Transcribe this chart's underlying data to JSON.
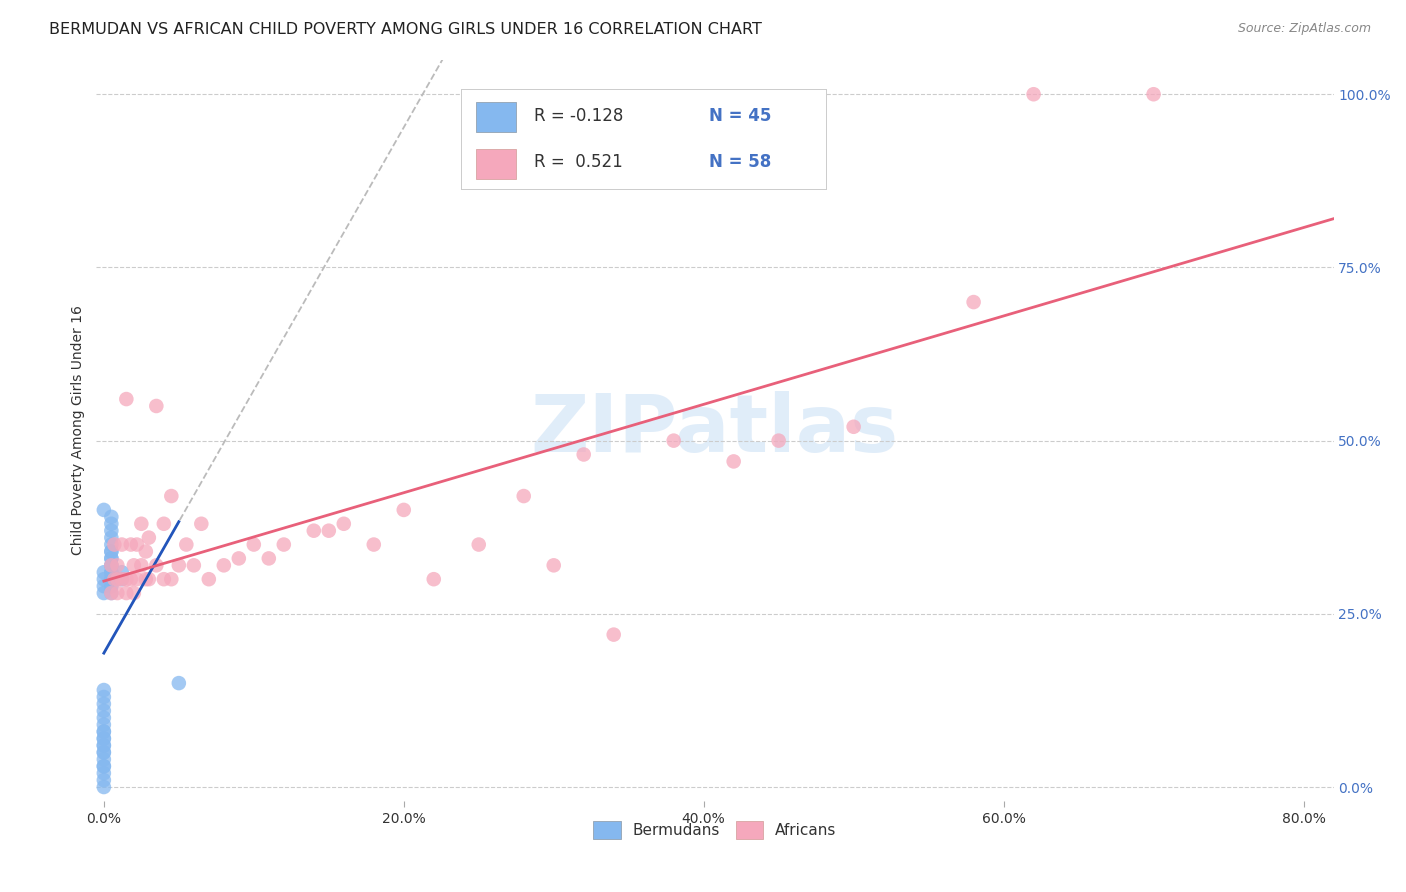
{
  "title": "BERMUDAN VS AFRICAN CHILD POVERTY AMONG GIRLS UNDER 16 CORRELATION CHART",
  "source": "Source: ZipAtlas.com",
  "ylabel": "Child Poverty Among Girls Under 16",
  "xlabel_ticks": [
    "0.0%",
    "20.0%",
    "40.0%",
    "60.0%",
    "80.0%"
  ],
  "xlabel_vals": [
    0.0,
    0.2,
    0.4,
    0.6,
    0.8
  ],
  "ylabel_ticks_right": [
    "100.0%",
    "75.0%",
    "50.0%",
    "25.0%",
    "0.0%"
  ],
  "ylabel_vals": [
    0.0,
    0.25,
    0.5,
    0.75,
    1.0
  ],
  "xlim": [
    -0.005,
    0.82
  ],
  "ylim": [
    -0.02,
    1.05
  ],
  "watermark": "ZIPatlas",
  "bermudans_color": "#85b8ef",
  "africans_color": "#f5a8bc",
  "bermudans_line_color": "#2255bb",
  "africans_line_color": "#e8607a",
  "dashed_line_color": "#bbbbbb",
  "title_fontsize": 11.5,
  "source_fontsize": 9,
  "axis_label_fontsize": 10,
  "tick_fontsize": 10,
  "right_tick_color": "#4472c4",
  "berm_x": [
    0.0,
    0.0,
    0.0,
    0.0,
    0.0,
    0.0,
    0.0,
    0.0,
    0.0,
    0.0,
    0.0,
    0.0,
    0.0,
    0.0,
    0.0,
    0.0,
    0.0,
    0.0,
    0.0,
    0.0,
    0.0,
    0.0,
    0.0,
    0.0,
    0.005,
    0.005,
    0.005,
    0.005,
    0.005,
    0.005,
    0.005,
    0.005,
    0.005,
    0.005,
    0.005,
    0.005,
    0.005,
    0.005,
    0.005,
    0.005,
    0.005,
    0.012,
    0.012,
    0.05,
    0.0
  ],
  "berm_y": [
    0.0,
    0.01,
    0.02,
    0.03,
    0.04,
    0.05,
    0.06,
    0.07,
    0.08,
    0.09,
    0.1,
    0.11,
    0.12,
    0.13,
    0.14,
    0.4,
    0.05,
    0.06,
    0.07,
    0.08,
    0.28,
    0.29,
    0.3,
    0.31,
    0.28,
    0.29,
    0.3,
    0.31,
    0.32,
    0.33,
    0.34,
    0.35,
    0.36,
    0.37,
    0.38,
    0.39,
    0.3,
    0.31,
    0.32,
    0.33,
    0.34,
    0.3,
    0.31,
    0.15,
    0.03
  ],
  "afr_x": [
    0.005,
    0.005,
    0.007,
    0.007,
    0.009,
    0.009,
    0.009,
    0.012,
    0.012,
    0.015,
    0.015,
    0.015,
    0.018,
    0.018,
    0.02,
    0.02,
    0.022,
    0.022,
    0.025,
    0.025,
    0.028,
    0.028,
    0.03,
    0.03,
    0.035,
    0.035,
    0.04,
    0.04,
    0.045,
    0.045,
    0.05,
    0.055,
    0.06,
    0.065,
    0.07,
    0.08,
    0.09,
    0.1,
    0.11,
    0.12,
    0.14,
    0.15,
    0.16,
    0.18,
    0.2,
    0.22,
    0.25,
    0.28,
    0.3,
    0.32,
    0.34,
    0.38,
    0.42,
    0.45,
    0.5,
    0.58,
    0.62,
    0.7
  ],
  "afr_y": [
    0.28,
    0.32,
    0.3,
    0.35,
    0.28,
    0.3,
    0.32,
    0.3,
    0.35,
    0.28,
    0.3,
    0.56,
    0.3,
    0.35,
    0.28,
    0.32,
    0.3,
    0.35,
    0.32,
    0.38,
    0.3,
    0.34,
    0.3,
    0.36,
    0.32,
    0.55,
    0.3,
    0.38,
    0.3,
    0.42,
    0.32,
    0.35,
    0.32,
    0.38,
    0.3,
    0.32,
    0.33,
    0.35,
    0.33,
    0.35,
    0.37,
    0.37,
    0.38,
    0.35,
    0.4,
    0.3,
    0.35,
    0.42,
    0.32,
    0.48,
    0.22,
    0.5,
    0.47,
    0.5,
    0.52,
    0.7,
    1.0,
    1.0
  ]
}
